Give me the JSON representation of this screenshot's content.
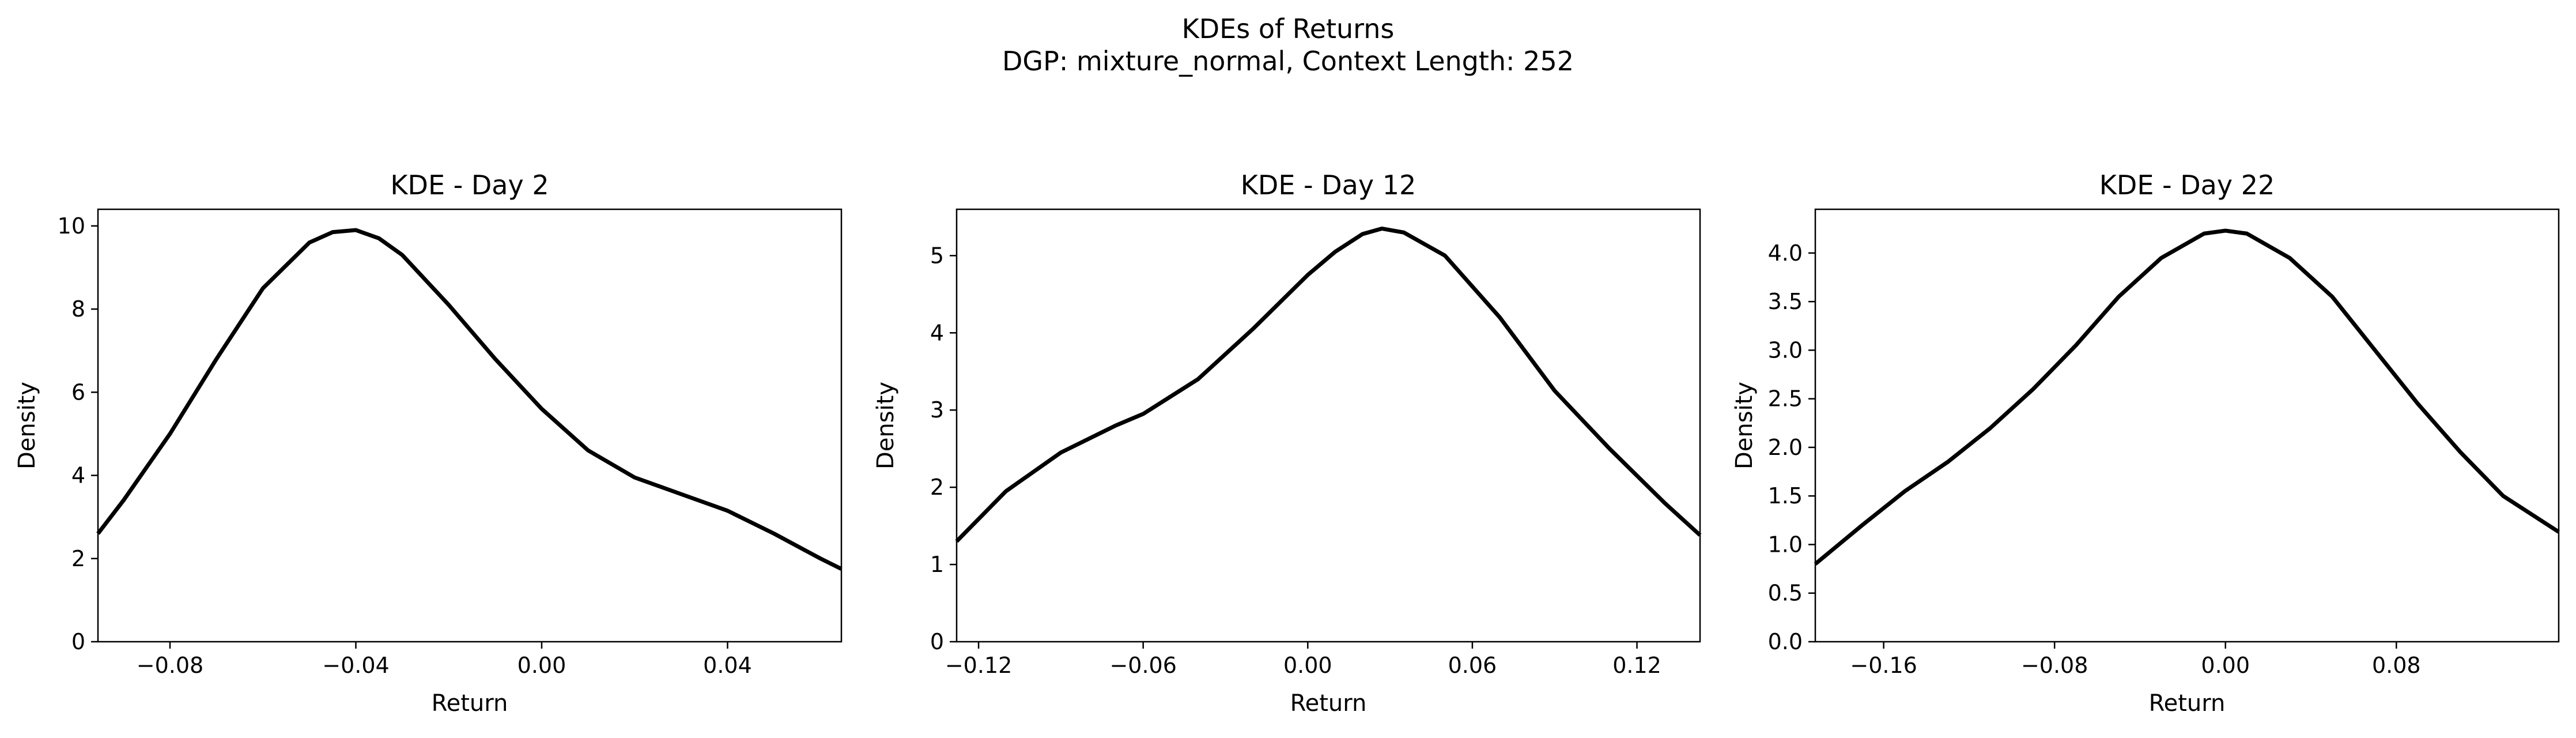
{
  "figure": {
    "title_line1": "KDEs of Returns",
    "title_line2": "DGP: mixture_normal, Context Length: 252"
  },
  "chart_data": [
    {
      "type": "line",
      "title": "KDE - Day 2",
      "xlabel": "Return",
      "ylabel": "Density",
      "xlim": [
        -0.0955,
        0.0645
      ],
      "ylim": [
        0,
        10.4
      ],
      "xticks": [
        -0.08,
        -0.04,
        0.0,
        0.04
      ],
      "xtick_labels": [
        "−0.08",
        "−0.04",
        "0.00",
        "0.04"
      ],
      "yticks": [
        0,
        2,
        4,
        6,
        8,
        10
      ],
      "ytick_labels": [
        "0",
        "2",
        "4",
        "6",
        "8",
        "10"
      ],
      "grid": false,
      "line_color": "#000000",
      "x": [
        -0.0955,
        -0.09,
        -0.08,
        -0.07,
        -0.06,
        -0.05,
        -0.045,
        -0.04,
        -0.035,
        -0.03,
        -0.02,
        -0.01,
        0.0,
        0.01,
        0.02,
        0.03,
        0.04,
        0.05,
        0.06,
        0.0645
      ],
      "y": [
        2.6,
        3.4,
        5.0,
        6.8,
        8.5,
        9.6,
        9.85,
        9.9,
        9.7,
        9.3,
        8.1,
        6.8,
        5.6,
        4.6,
        3.95,
        3.55,
        3.15,
        2.6,
        2.0,
        1.75
      ]
    },
    {
      "type": "line",
      "title": "KDE - Day 12",
      "xlabel": "Return",
      "ylabel": "Density",
      "xlim": [
        -0.128,
        0.143
      ],
      "ylim": [
        0,
        5.6
      ],
      "xticks": [
        -0.12,
        -0.06,
        0.0,
        0.06,
        0.12
      ],
      "xtick_labels": [
        "−0.12",
        "−0.06",
        "0.00",
        "0.06",
        "0.12"
      ],
      "yticks": [
        0,
        1,
        2,
        3,
        4,
        5
      ],
      "ytick_labels": [
        "0",
        "1",
        "2",
        "3",
        "4",
        "5"
      ],
      "grid": false,
      "line_color": "#000000",
      "x": [
        -0.128,
        -0.11,
        -0.09,
        -0.07,
        -0.06,
        -0.04,
        -0.02,
        0.0,
        0.01,
        0.02,
        0.027,
        0.035,
        0.05,
        0.07,
        0.09,
        0.11,
        0.13,
        0.143
      ],
      "y": [
        1.3,
        1.95,
        2.45,
        2.8,
        2.95,
        3.4,
        4.05,
        4.75,
        5.05,
        5.28,
        5.35,
        5.3,
        5.0,
        4.2,
        3.25,
        2.5,
        1.8,
        1.38
      ]
    },
    {
      "type": "line",
      "title": "KDE - Day 22",
      "xlabel": "Return",
      "ylabel": "Density",
      "xlim": [
        -0.192,
        0.156
      ],
      "ylim": [
        0,
        4.45
      ],
      "xticks": [
        -0.16,
        -0.08,
        0.0,
        0.08
      ],
      "xtick_labels": [
        "−0.16",
        "−0.08",
        "0.00",
        "0.08"
      ],
      "yticks": [
        0.0,
        0.5,
        1.0,
        1.5,
        2.0,
        2.5,
        3.0,
        3.5,
        4.0
      ],
      "ytick_labels": [
        "0.0",
        "0.5",
        "1.0",
        "1.5",
        "2.0",
        "2.5",
        "3.0",
        "3.5",
        "4.0"
      ],
      "grid": false,
      "line_color": "#000000",
      "x": [
        -0.192,
        -0.17,
        -0.15,
        -0.13,
        -0.11,
        -0.09,
        -0.07,
        -0.05,
        -0.03,
        -0.01,
        0.0,
        0.01,
        0.03,
        0.05,
        0.07,
        0.09,
        0.11,
        0.13,
        0.156
      ],
      "y": [
        0.8,
        1.2,
        1.55,
        1.85,
        2.2,
        2.6,
        3.05,
        3.55,
        3.95,
        4.2,
        4.23,
        4.2,
        3.95,
        3.55,
        3.0,
        2.45,
        1.95,
        1.5,
        1.13
      ]
    }
  ]
}
